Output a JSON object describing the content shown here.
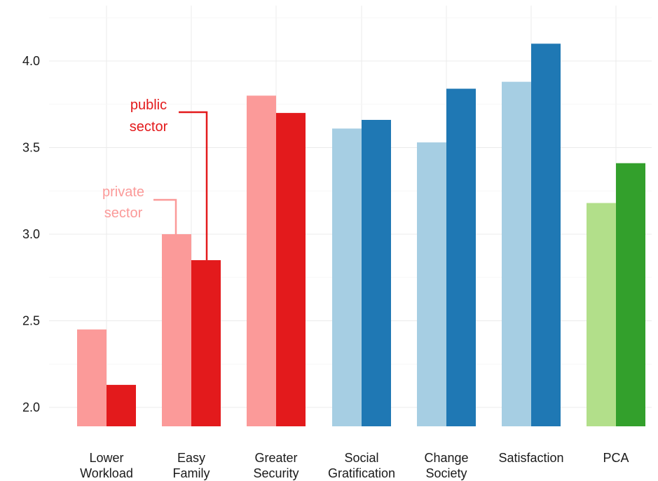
{
  "chart_data": {
    "type": "bar",
    "categories": [
      [
        "Lower",
        "Workload"
      ],
      [
        "Easy",
        "Family"
      ],
      [
        "Greater",
        "Security"
      ],
      [
        "Social",
        "Gratification"
      ],
      [
        "Change",
        "Society"
      ],
      [
        "Satisfaction"
      ],
      [
        "PCA"
      ]
    ],
    "series": [
      {
        "values": [
          2.45,
          3.0,
          3.8,
          3.61,
          3.53,
          3.88,
          3.18
        ]
      },
      {
        "values": [
          2.13,
          2.85,
          3.7,
          3.66,
          3.84,
          4.1,
          3.41
        ]
      }
    ],
    "colors": {
      "private": [
        "#fb9a99",
        "#fb9a99",
        "#fb9a99",
        "#a6cee3",
        "#a6cee3",
        "#a6cee3",
        "#b2df8a"
      ],
      "public": [
        "#e31a1c",
        "#e31a1c",
        "#e31a1c",
        "#1f78b4",
        "#1f78b4",
        "#1f78b4",
        "#33a02c"
      ]
    },
    "y_ticks": [
      "2.0",
      "2.5",
      "3.0",
      "3.5",
      "4.0"
    ],
    "ylim": [
      1.89,
      4.3
    ],
    "grid": true,
    "annotations": {
      "public": {
        "lines": [
          "public",
          "sector"
        ],
        "color": "#e31a1c"
      },
      "private": {
        "lines": [
          "private",
          "sector"
        ],
        "color": "#fb9a99"
      }
    }
  }
}
